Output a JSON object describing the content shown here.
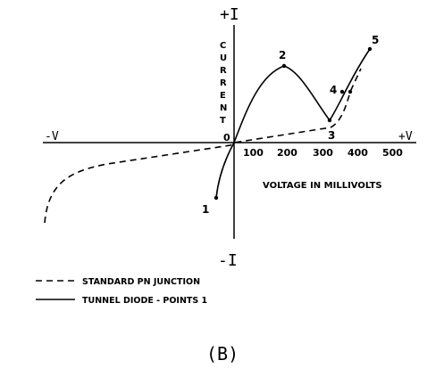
{
  "axes": {
    "pos_current": "+I",
    "neg_current": "-I",
    "pos_voltage": "+V",
    "neg_voltage": "-V",
    "origin": "0",
    "y_label_letters": [
      "C",
      "U",
      "R",
      "R",
      "E",
      "N",
      "T"
    ],
    "x_unit_label": "VOLTAGE IN MILLIVOLTS",
    "x_ticks": [
      "100",
      "200",
      "300",
      "400",
      "500"
    ]
  },
  "points": {
    "p1": "1",
    "p2": "2",
    "p3": "3",
    "p4": "4",
    "p5": "5"
  },
  "legend": {
    "dashed_label": "STANDARD PN JUNCTION",
    "solid_label": "TUNNEL DIODE - POINTS 1"
  },
  "caption": "(B)",
  "colors": {
    "ink": "#000000",
    "background": "#ffffff"
  }
}
